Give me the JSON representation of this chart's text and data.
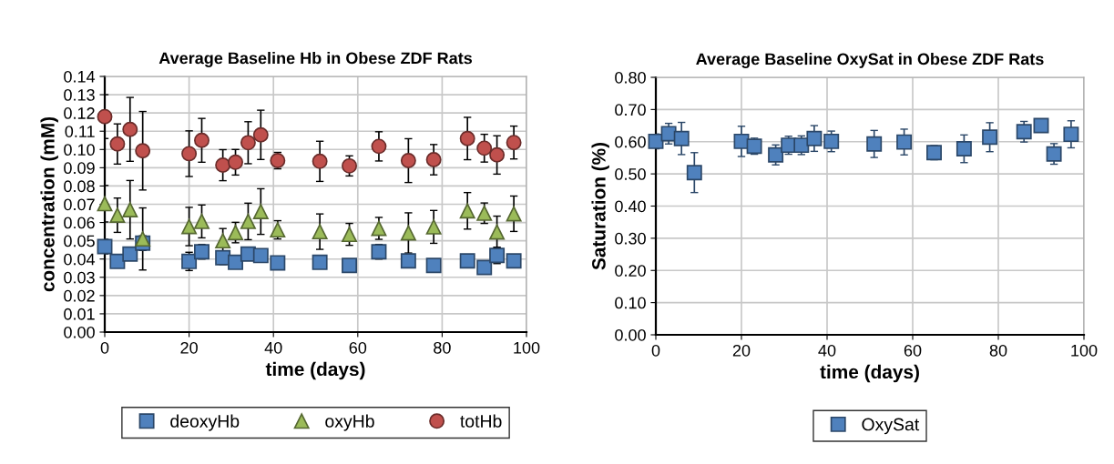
{
  "chart_data": [
    {
      "type": "scatter",
      "title": "Average Baseline Hb in Obese ZDF Rats",
      "xlabel": "time (days)",
      "ylabel": "concentration (mM)",
      "x": [
        0,
        3,
        6,
        9,
        20,
        23,
        28,
        31,
        34,
        37,
        41,
        51,
        58,
        65,
        72,
        78,
        86,
        90,
        93,
        97
      ],
      "series": [
        {
          "name": "deoxyHb",
          "color": "#4f81bd",
          "marker": "square",
          "values": [
            0.0468,
            0.0387,
            0.0427,
            0.0487,
            0.0387,
            0.044,
            0.0407,
            0.0382,
            0.0427,
            0.0419,
            0.0379,
            0.0382,
            0.0365,
            0.044,
            0.039,
            0.0365,
            0.039,
            0.0354,
            0.042,
            0.039
          ],
          "errors": [
            0.004,
            0.0035,
            null,
            0.004,
            0.005,
            0.004,
            0.0037,
            null,
            null,
            null,
            null,
            null,
            null,
            0.004,
            null,
            null,
            0.003,
            null,
            0.0045,
            null
          ]
        },
        {
          "name": "oxyHb",
          "color": "#9bbb59",
          "marker": "triangle",
          "values": [
            0.0703,
            0.064,
            0.067,
            0.051,
            0.0578,
            0.0606,
            0.05,
            0.0545,
            0.0606,
            0.066,
            0.056,
            0.055,
            0.0535,
            0.0568,
            0.0543,
            0.0576,
            0.0664,
            0.0651,
            0.0548,
            0.0648
          ],
          "errors": [
            0.01,
            0.0094,
            0.016,
            0.017,
            0.0105,
            0.009,
            0.0067,
            0.0056,
            0.01,
            0.0125,
            0.005,
            0.0097,
            0.006,
            0.006,
            0.011,
            0.009,
            0.01,
            0.0056,
            0.0087,
            0.0097
          ]
        },
        {
          "name": "totHb",
          "color": "#c0504d",
          "marker": "circle",
          "values": [
            0.118,
            0.103,
            0.111,
            0.0993,
            0.0977,
            0.105,
            0.0914,
            0.093,
            0.1037,
            0.108,
            0.0939,
            0.0935,
            0.091,
            0.1017,
            0.0939,
            0.0944,
            0.106,
            0.1007,
            0.097,
            0.1038
          ],
          "errors": [
            0.012,
            0.011,
            0.0175,
            0.0215,
            0.0125,
            0.012,
            0.0085,
            0.007,
            0.0115,
            0.0135,
            0.0045,
            0.011,
            0.0055,
            0.008,
            0.012,
            0.0083,
            0.0116,
            0.0076,
            0.0105,
            0.009
          ]
        }
      ],
      "xlim": [
        0,
        100
      ],
      "xticks": [
        0,
        20,
        40,
        60,
        80,
        100
      ],
      "ylim": [
        0,
        0.14
      ],
      "yticks": [
        {
          "value": 0,
          "label": "0.00"
        },
        {
          "value": 0.01,
          "label": "0.01"
        },
        {
          "value": 0.02,
          "label": "0.02"
        },
        {
          "value": 0.03,
          "label": "0.03"
        },
        {
          "value": 0.04,
          "label": "0.04"
        },
        {
          "value": 0.05,
          "label": "0.05"
        },
        {
          "value": 0.06,
          "label": "0.06"
        },
        {
          "value": 0.07,
          "label": "0.07"
        },
        {
          "value": 0.08,
          "label": "0.08"
        },
        {
          "value": 0.09,
          "label": "0.09"
        },
        {
          "value": 0.1,
          "label": "0.10"
        },
        {
          "value": 0.11,
          "label": "0.11"
        },
        {
          "value": 0.12,
          "label": "0.12"
        },
        {
          "value": 0.13,
          "label": "0.13"
        },
        {
          "value": 0.14,
          "label": "0.14"
        }
      ],
      "grid": true,
      "legend": "bottom"
    },
    {
      "type": "scatter",
      "title": "Average Baseline OxySat in Obese ZDF Rats",
      "xlabel": "time (days)",
      "ylabel": "Saturation (%)",
      "x": [
        0,
        3,
        6,
        9,
        20,
        23,
        28,
        31,
        34,
        37,
        41,
        51,
        58,
        65,
        72,
        78,
        86,
        90,
        93,
        97
      ],
      "series": [
        {
          "name": "OxySat",
          "color": "#4f81bd",
          "marker": "square",
          "values": [
            0.601,
            0.625,
            0.61,
            0.504,
            0.601,
            0.586,
            0.559,
            0.589,
            0.589,
            0.61,
            0.601,
            0.593,
            0.599,
            0.566,
            0.578,
            0.614,
            0.631,
            0.65,
            0.562,
            0.623
          ],
          "errors": [
            0.023,
            0.032,
            0.05,
            0.062,
            0.047,
            0.025,
            0.031,
            0.028,
            0.029,
            0.04,
            0.032,
            0.042,
            0.04,
            0.022,
            0.043,
            0.045,
            0.032,
            null,
            0.032,
            0.042
          ]
        }
      ],
      "xlim": [
        0,
        100
      ],
      "xticks": [
        0,
        20,
        40,
        60,
        80,
        100
      ],
      "ylim": [
        0,
        0.8
      ],
      "yticks": [
        {
          "value": 0,
          "label": "0.00"
        },
        {
          "value": 0.1,
          "label": "0.10"
        },
        {
          "value": 0.2,
          "label": "0.20"
        },
        {
          "value": 0.3,
          "label": "0.30"
        },
        {
          "value": 0.4,
          "label": "0.40"
        },
        {
          "value": 0.5,
          "label": "0.50"
        },
        {
          "value": 0.6,
          "label": "0.60"
        },
        {
          "value": 0.7,
          "label": "0.70"
        },
        {
          "value": 0.8,
          "label": "0.80"
        }
      ],
      "grid": true,
      "legend": "bottom"
    }
  ]
}
